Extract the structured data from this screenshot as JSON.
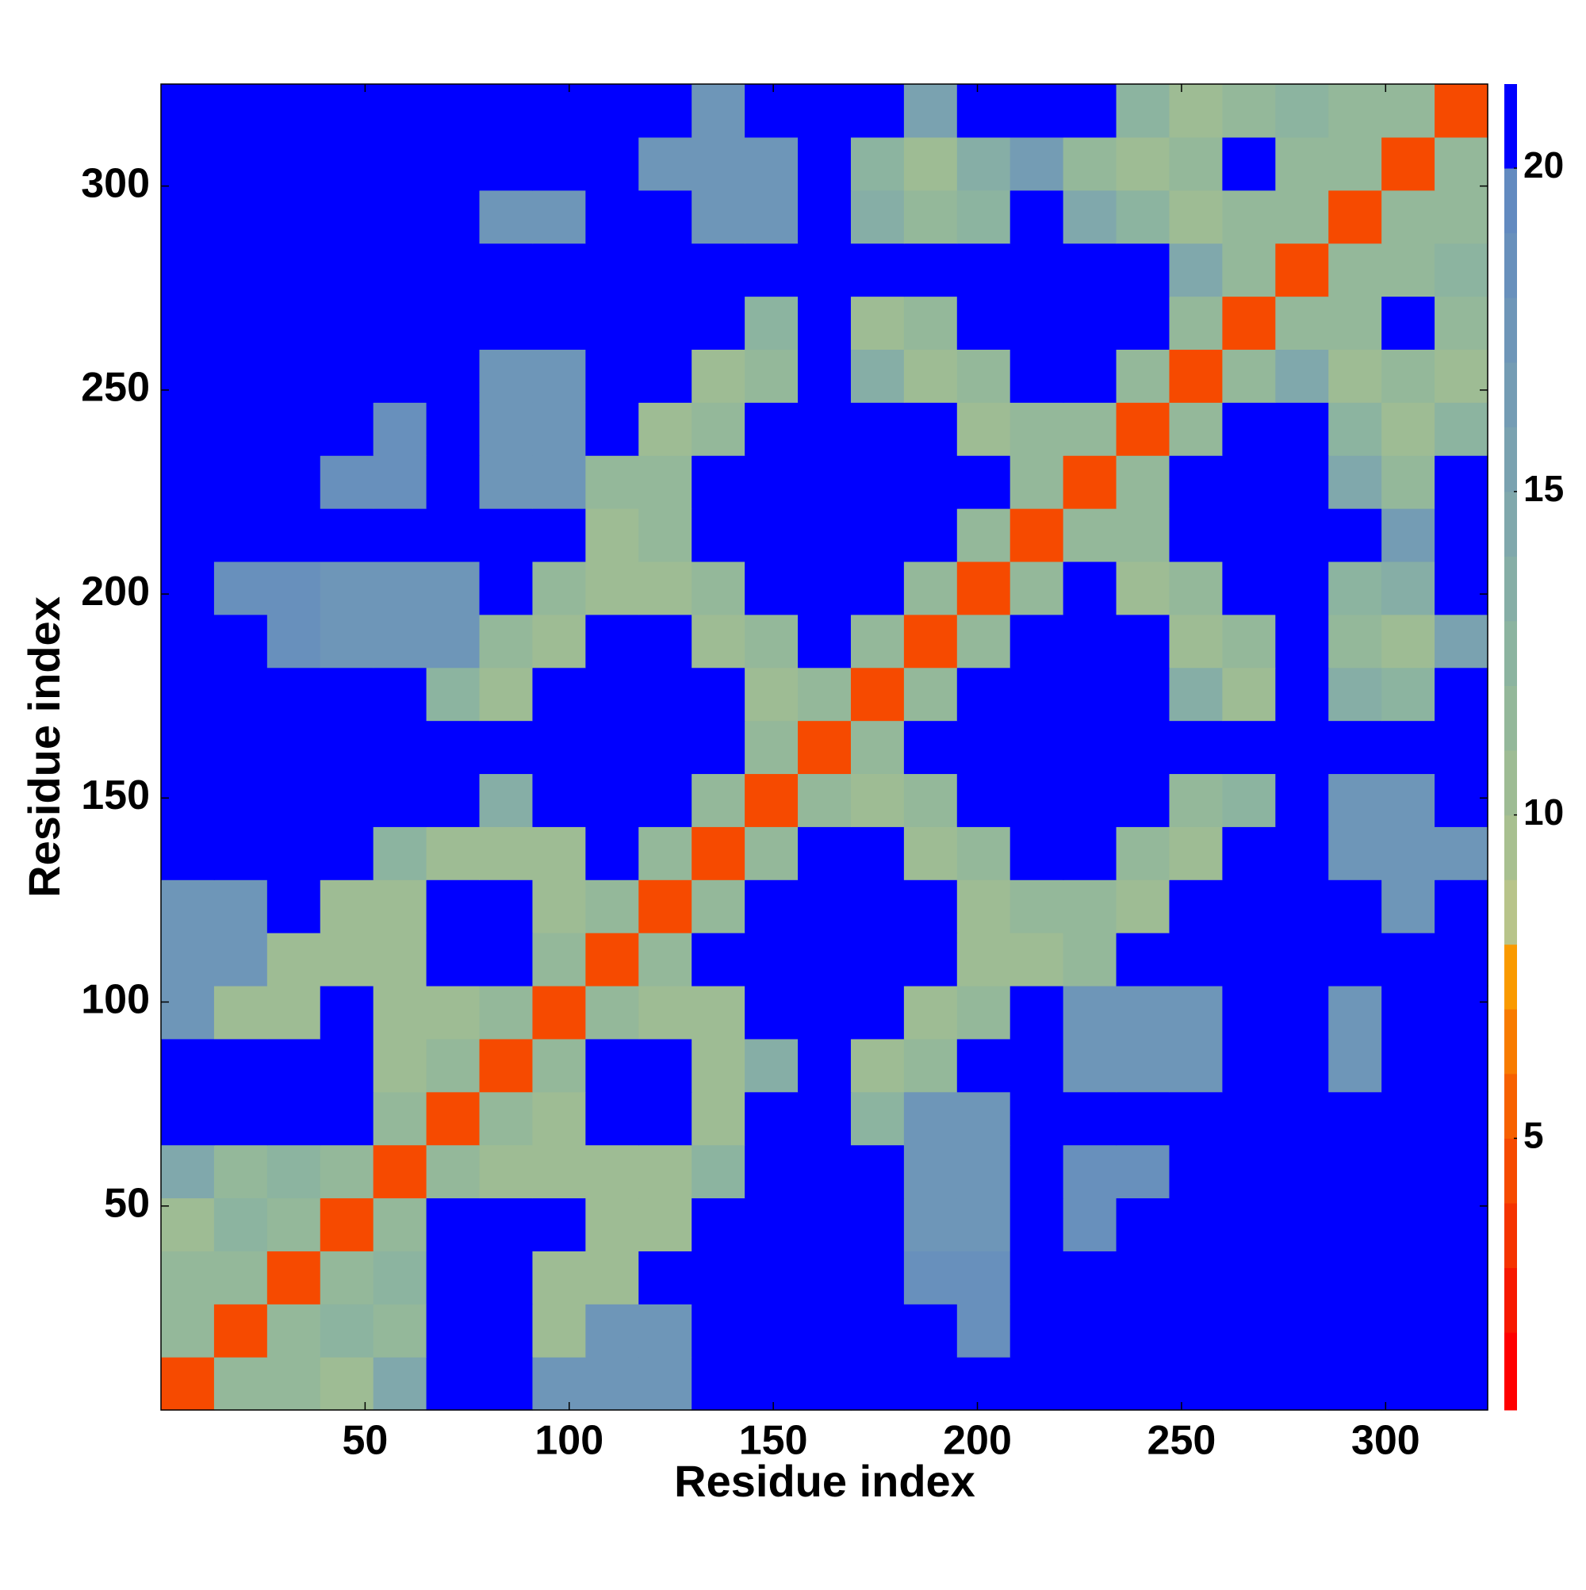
{
  "chart_data": {
    "type": "heatmap",
    "xlabel": "Residue index",
    "ylabel": "Residue index",
    "xlim": [
      0,
      325
    ],
    "ylim": [
      0,
      325
    ],
    "xticks": [
      50,
      100,
      150,
      200,
      250,
      300
    ],
    "yticks": [
      50,
      100,
      150,
      200,
      250,
      300
    ],
    "xbins": [
      0,
      13,
      26,
      39,
      52,
      65,
      78,
      91,
      104,
      117,
      130,
      143,
      156,
      169,
      182,
      195,
      208,
      221,
      234,
      247,
      260,
      273,
      286,
      299,
      312,
      325
    ],
    "ybins": [
      0,
      13,
      26,
      39,
      52,
      65,
      78,
      91,
      104,
      117,
      130,
      143,
      156,
      169,
      182,
      195,
      208,
      221,
      234,
      247,
      260,
      273,
      286,
      299,
      312,
      325
    ],
    "values": [
      [
        5,
        12,
        12,
        11,
        15,
        21,
        21,
        18,
        18,
        18,
        21,
        21,
        21,
        21,
        21,
        21,
        21,
        21,
        21,
        21,
        21,
        21,
        21,
        21,
        21
      ],
      [
        12,
        5,
        12,
        13,
        12,
        21,
        21,
        11,
        18,
        18,
        21,
        21,
        21,
        21,
        21,
        19,
        21,
        21,
        21,
        21,
        21,
        21,
        21,
        21,
        21
      ],
      [
        12,
        12,
        5,
        12,
        13,
        21,
        21,
        11,
        11,
        21,
        21,
        21,
        21,
        21,
        19,
        19,
        21,
        21,
        21,
        21,
        21,
        21,
        21,
        21,
        21
      ],
      [
        11,
        13,
        12,
        5,
        12,
        21,
        21,
        21,
        11,
        11,
        21,
        21,
        21,
        21,
        18,
        18,
        21,
        19,
        21,
        21,
        21,
        21,
        21,
        21,
        21
      ],
      [
        15,
        12,
        13,
        12,
        5,
        12,
        11,
        11,
        11,
        11,
        13,
        21,
        21,
        21,
        18,
        18,
        21,
        19,
        19,
        21,
        21,
        21,
        21,
        21,
        21
      ],
      [
        21,
        21,
        21,
        21,
        12,
        5,
        12,
        11,
        21,
        21,
        11,
        21,
        21,
        13,
        18,
        18,
        21,
        21,
        21,
        21,
        21,
        21,
        21,
        21,
        21
      ],
      [
        21,
        21,
        21,
        21,
        11,
        12,
        5,
        12,
        21,
        21,
        11,
        14,
        21,
        11,
        12,
        21,
        21,
        18,
        18,
        18,
        21,
        21,
        18,
        21,
        21
      ],
      [
        18,
        11,
        11,
        21,
        11,
        11,
        12,
        5,
        12,
        11,
        11,
        21,
        21,
        21,
        11,
        12,
        21,
        18,
        18,
        18,
        21,
        21,
        18,
        21,
        21
      ],
      [
        18,
        18,
        11,
        11,
        11,
        21,
        21,
        12,
        5,
        12,
        21,
        21,
        21,
        21,
        21,
        11,
        11,
        12,
        21,
        21,
        21,
        21,
        21,
        21,
        21
      ],
      [
        18,
        18,
        21,
        11,
        11,
        21,
        21,
        11,
        12,
        5,
        12,
        21,
        21,
        21,
        21,
        11,
        12,
        12,
        11,
        21,
        21,
        21,
        21,
        18,
        21
      ],
      [
        21,
        21,
        21,
        21,
        13,
        11,
        11,
        11,
        21,
        12,
        5,
        12,
        21,
        21,
        11,
        12,
        21,
        21,
        12,
        11,
        21,
        21,
        18,
        18,
        18
      ],
      [
        21,
        21,
        21,
        21,
        21,
        21,
        14,
        21,
        21,
        21,
        12,
        5,
        12,
        11,
        12,
        21,
        21,
        21,
        21,
        12,
        13,
        21,
        18,
        18,
        21
      ],
      [
        21,
        21,
        21,
        21,
        21,
        21,
        21,
        21,
        21,
        21,
        21,
        12,
        5,
        12,
        21,
        21,
        21,
        21,
        21,
        21,
        21,
        21,
        21,
        21,
        21
      ],
      [
        21,
        21,
        21,
        21,
        21,
        13,
        11,
        21,
        21,
        21,
        21,
        11,
        12,
        5,
        12,
        21,
        21,
        21,
        21,
        14,
        11,
        21,
        14,
        13,
        21
      ],
      [
        21,
        21,
        19,
        18,
        18,
        18,
        12,
        11,
        21,
        21,
        11,
        12,
        21,
        12,
        5,
        12,
        21,
        21,
        21,
        11,
        12,
        21,
        12,
        11,
        16
      ],
      [
        21,
        19,
        19,
        18,
        18,
        18,
        21,
        12,
        11,
        11,
        12,
        21,
        21,
        21,
        12,
        5,
        12,
        21,
        11,
        12,
        21,
        21,
        13,
        14,
        21
      ],
      [
        21,
        21,
        21,
        21,
        21,
        21,
        21,
        21,
        11,
        12,
        21,
        21,
        21,
        21,
        21,
        12,
        5,
        12,
        12,
        21,
        21,
        21,
        21,
        17,
        21
      ],
      [
        21,
        21,
        21,
        19,
        19,
        21,
        18,
        18,
        12,
        12,
        21,
        21,
        21,
        21,
        21,
        21,
        12,
        5,
        12,
        21,
        21,
        21,
        15,
        12,
        21
      ],
      [
        21,
        21,
        21,
        21,
        19,
        21,
        18,
        18,
        21,
        11,
        12,
        21,
        21,
        21,
        21,
        11,
        12,
        12,
        5,
        12,
        21,
        21,
        13,
        11,
        13
      ],
      [
        21,
        21,
        21,
        21,
        21,
        21,
        18,
        18,
        21,
        21,
        11,
        12,
        21,
        14,
        11,
        12,
        21,
        21,
        12,
        5,
        12,
        15,
        11,
        12,
        11
      ],
      [
        21,
        21,
        21,
        21,
        21,
        21,
        21,
        21,
        21,
        21,
        21,
        13,
        21,
        11,
        12,
        21,
        21,
        21,
        21,
        12,
        5,
        12,
        12,
        21,
        12
      ],
      [
        21,
        21,
        21,
        21,
        21,
        21,
        21,
        21,
        21,
        21,
        21,
        21,
        21,
        21,
        21,
        21,
        21,
        21,
        21,
        15,
        12,
        5,
        12,
        12,
        13
      ],
      [
        21,
        21,
        21,
        21,
        21,
        21,
        18,
        18,
        21,
        21,
        18,
        18,
        21,
        14,
        12,
        13,
        21,
        15,
        13,
        11,
        12,
        12,
        5,
        12,
        12
      ],
      [
        21,
        21,
        21,
        21,
        21,
        21,
        21,
        21,
        21,
        18,
        18,
        18,
        21,
        13,
        11,
        14,
        17,
        12,
        11,
        12,
        21,
        12,
        12,
        5,
        12
      ],
      [
        21,
        21,
        21,
        21,
        21,
        21,
        21,
        21,
        21,
        21,
        18,
        21,
        21,
        21,
        16,
        21,
        21,
        21,
        13,
        11,
        12,
        13,
        12,
        12,
        5
      ]
    ],
    "colorbar": {
      "lim": [
        0.8,
        21.3
      ],
      "ticks": [
        5,
        10,
        15,
        20
      ],
      "levels": [
        0.8,
        2,
        3,
        4,
        5,
        6,
        7,
        8,
        9,
        10,
        11,
        12,
        13,
        14,
        15,
        16,
        17,
        18,
        19,
        20,
        21.3
      ],
      "colors": [
        "#ff0000",
        "#f71800",
        "#f53300",
        "#f64a00",
        "#f76100",
        "#f87b00",
        "#fa9a00",
        "#b8c48a",
        "#a8c090",
        "#9ebc94",
        "#94b89a",
        "#8cb4a0",
        "#86aea6",
        "#80a8ac",
        "#7aa2b0",
        "#749cb4",
        "#6e96b8",
        "#6890bc",
        "#628ac0",
        "#0000ff"
      ]
    }
  }
}
